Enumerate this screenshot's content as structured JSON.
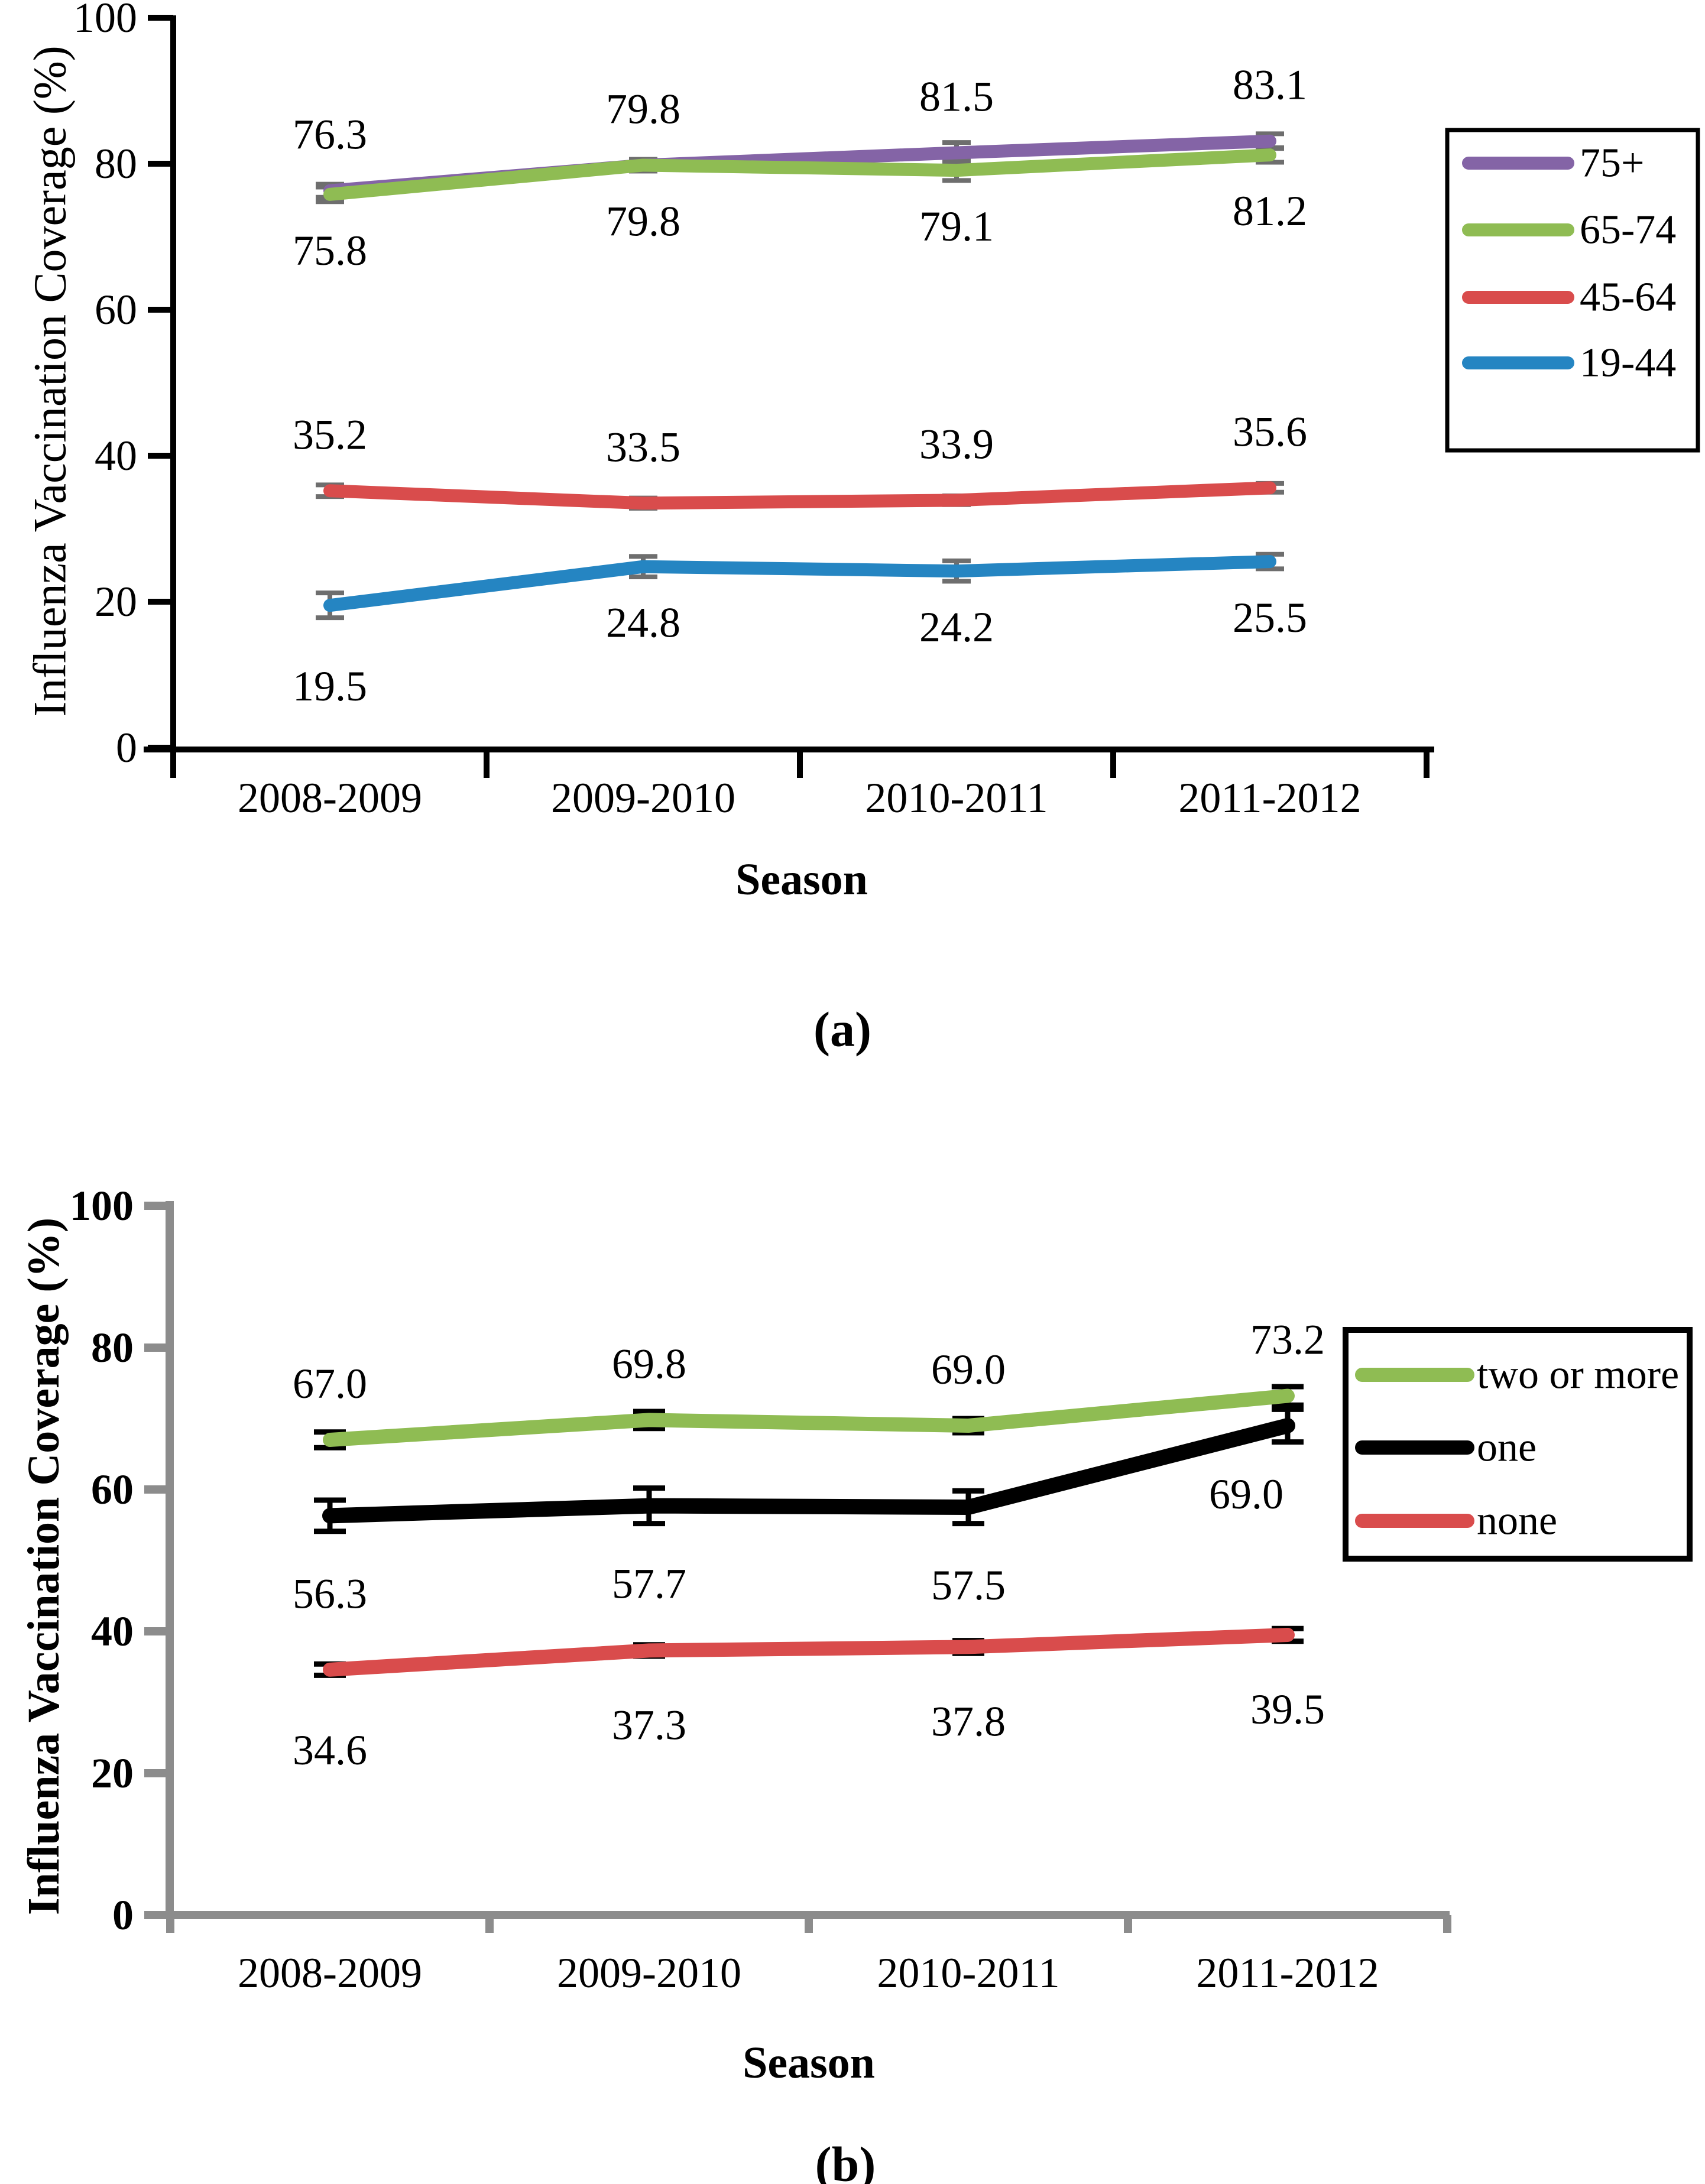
{
  "page": {
    "background": "#FFFFFF"
  },
  "chart_data": [
    {
      "type": "line",
      "panel_label": "(a)",
      "ylabel": "Influenza Vaccination Coverage (%)",
      "xlabel": "Season",
      "categories": [
        "2008-2009",
        "2009-2010",
        "2010-2011",
        "2011-2012"
      ],
      "ylim": [
        0,
        100
      ],
      "yticks": [
        0,
        20,
        40,
        60,
        80,
        100
      ],
      "grid": false,
      "legend_position": "right",
      "axis_color": "#000000",
      "error_bar_color": "#6E6E6E",
      "tick_label_weight": "normal",
      "ylabel_weight": "normal",
      "series": [
        {
          "name": "75+",
          "color": "#8464A6",
          "values": [
            76.3,
            79.8,
            81.5,
            83.1
          ],
          "labels": [
            "76.3",
            "79.8",
            "81.5",
            "83.1"
          ],
          "errors": [
            0.9,
            0.8,
            1.4,
            1.0
          ],
          "label_side": "above"
        },
        {
          "name": "65-74",
          "color": "#8FBC53",
          "values": [
            75.8,
            79.8,
            79.1,
            81.2
          ],
          "labels": [
            "75.8",
            "79.8",
            "79.1",
            "81.2"
          ],
          "errors": [
            1.0,
            0.8,
            1.4,
            1.0
          ],
          "label_side": "below"
        },
        {
          "name": "45-64",
          "color": "#D94C4C",
          "values": [
            35.2,
            33.5,
            33.9,
            35.6
          ],
          "labels": [
            "35.2",
            "33.5",
            "33.9",
            "35.6"
          ],
          "errors": [
            0.8,
            0.7,
            0.6,
            0.6
          ],
          "label_side": "above"
        },
        {
          "name": "19-44",
          "color": "#2585C2",
          "values": [
            19.5,
            24.8,
            24.2,
            25.5
          ],
          "labels": [
            "19.5",
            "24.8",
            "24.2",
            "25.5"
          ],
          "errors": [
            1.7,
            1.4,
            1.4,
            1.0
          ],
          "label_side": "below",
          "label_dy": [
            42,
            0,
            0,
            0
          ]
        }
      ]
    },
    {
      "type": "line",
      "panel_label": "(b)",
      "ylabel": "Influenza Vaccination Coverage (%)",
      "xlabel": "Season",
      "categories": [
        "2008-2009",
        "2009-2010",
        "2010-2011",
        "2011-2012"
      ],
      "ylim": [
        0,
        100
      ],
      "yticks": [
        0,
        20,
        40,
        60,
        80,
        100
      ],
      "grid": false,
      "legend_position": "right",
      "axis_color": "#8C8C8C",
      "error_bar_color": "#000000",
      "tick_label_weight": "bold",
      "ylabel_weight": "bold",
      "series": [
        {
          "name": "two or more",
          "color": "#8FBC53",
          "values": [
            67.0,
            69.8,
            69.0,
            73.2
          ],
          "labels": [
            "67.0",
            "69.8",
            "69.0",
            "73.2"
          ],
          "errors": [
            1.1,
            1.2,
            1.0,
            1.3
          ],
          "label_side": "above"
        },
        {
          "name": "one",
          "color": "#000000",
          "values": [
            56.3,
            57.7,
            57.5,
            69.0
          ],
          "labels": [
            "56.3",
            "57.7",
            "57.5",
            "69.0"
          ],
          "errors": [
            2.2,
            2.5,
            2.3,
            2.3
          ],
          "label_side": "below",
          "label_gap": 132,
          "label_dx": [
            0,
            0,
            0,
            -70
          ],
          "label_dy": [
            0,
            0,
            0,
            -16
          ]
        },
        {
          "name": "none",
          "color": "#D94C4C",
          "values": [
            34.6,
            37.3,
            37.8,
            39.5
          ],
          "labels": [
            "34.6",
            "37.3",
            "37.8",
            "39.5"
          ],
          "errors": [
            0.8,
            0.8,
            0.9,
            0.9
          ],
          "label_side": "below",
          "label_gap": 126,
          "label_dy": [
            10,
            0,
            0,
            0
          ]
        }
      ]
    }
  ]
}
